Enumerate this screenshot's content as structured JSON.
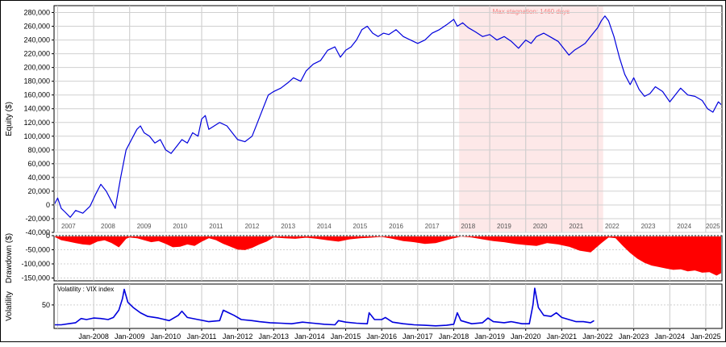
{
  "chart_data": [
    {
      "type": "line",
      "panel": "equity",
      "ylabel": "Equity ($)",
      "ylim": [
        -40000,
        290000
      ],
      "yticks": [
        "280,000",
        "260,000",
        "240,000",
        "220,000",
        "200,000",
        "180,000",
        "160,000",
        "140,000",
        "120,000",
        "100,000",
        "80,000",
        "60,000",
        "40,000",
        "20,000",
        "0",
        "-20,000",
        "-40,000"
      ],
      "ytick_values": [
        280000,
        260000,
        240000,
        220000,
        200000,
        180000,
        160000,
        140000,
        120000,
        100000,
        80000,
        60000,
        40000,
        20000,
        0,
        -20000,
        -40000
      ],
      "year_labels": [
        "2007",
        "2008",
        "2009",
        "2010",
        "2011",
        "2012",
        "2013",
        "2014",
        "2015",
        "2016",
        "2017",
        "2018",
        "2019",
        "2020",
        "2021",
        "2022",
        "2023",
        "2024",
        "2025"
      ],
      "year_positions": [
        2007.3,
        2008.4,
        2009.4,
        2010.4,
        2011.4,
        2012.4,
        2013.4,
        2014.4,
        2015.4,
        2016.4,
        2017.4,
        2018.4,
        2019.4,
        2020.4,
        2021.4,
        2022.4,
        2023.4,
        2024.4,
        2025.2
      ],
      "grid": true,
      "stagnation": {
        "label": "Max stagnation: 1460 days",
        "start": 2018.15,
        "end": 2022.15,
        "color": "#fde8e8"
      },
      "series": [
        {
          "color": "#0000dd",
          "x": [
            2006.9,
            2007.0,
            2007.1,
            2007.2,
            2007.35,
            2007.5,
            2007.7,
            2007.9,
            2008.05,
            2008.2,
            2008.35,
            2008.5,
            2008.6,
            2008.75,
            2008.9,
            2009.05,
            2009.2,
            2009.3,
            2009.4,
            2009.55,
            2009.7,
            2009.85,
            2010.0,
            2010.15,
            2010.3,
            2010.45,
            2010.6,
            2010.75,
            2010.9,
            2011.0,
            2011.1,
            2011.2,
            2011.35,
            2011.5,
            2011.7,
            2011.85,
            2012.0,
            2012.2,
            2012.4,
            2012.55,
            2012.7,
            2012.85,
            2013.0,
            2013.2,
            2013.4,
            2013.55,
            2013.75,
            2013.9,
            2014.1,
            2014.3,
            2014.5,
            2014.7,
            2014.85,
            2015.0,
            2015.15,
            2015.3,
            2015.45,
            2015.6,
            2015.75,
            2015.9,
            2016.05,
            2016.2,
            2016.4,
            2016.6,
            2016.8,
            2017.0,
            2017.2,
            2017.4,
            2017.6,
            2017.8,
            2018.0,
            2018.1,
            2018.25,
            2018.4,
            2018.6,
            2018.8,
            2019.0,
            2019.2,
            2019.4,
            2019.6,
            2019.8,
            2020.0,
            2020.15,
            2020.3,
            2020.5,
            2020.7,
            2020.9,
            2021.05,
            2021.2,
            2021.35,
            2021.5,
            2021.65,
            2021.8,
            2022.0,
            2022.1,
            2022.2,
            2022.3,
            2022.45,
            2022.6,
            2022.75,
            2022.9,
            2023.0,
            2023.15,
            2023.3,
            2023.45,
            2023.6,
            2023.8,
            2024.0,
            2024.15,
            2024.3,
            2024.5,
            2024.7,
            2024.9,
            2025.05,
            2025.2,
            2025.35,
            2025.45
          ],
          "y": [
            0,
            10000,
            -5000,
            -10000,
            -18000,
            -8000,
            -12000,
            -2000,
            15000,
            30000,
            20000,
            5000,
            -5000,
            40000,
            80000,
            95000,
            110000,
            115000,
            105000,
            100000,
            90000,
            95000,
            80000,
            75000,
            85000,
            95000,
            90000,
            105000,
            100000,
            125000,
            130000,
            110000,
            115000,
            120000,
            115000,
            105000,
            95000,
            92000,
            100000,
            120000,
            140000,
            160000,
            165000,
            170000,
            178000,
            185000,
            180000,
            195000,
            205000,
            210000,
            225000,
            230000,
            215000,
            225000,
            230000,
            240000,
            255000,
            260000,
            250000,
            245000,
            250000,
            248000,
            255000,
            245000,
            240000,
            235000,
            240000,
            250000,
            255000,
            262000,
            270000,
            260000,
            265000,
            258000,
            252000,
            245000,
            248000,
            240000,
            245000,
            238000,
            228000,
            240000,
            235000,
            245000,
            250000,
            244000,
            238000,
            228000,
            218000,
            225000,
            230000,
            235000,
            245000,
            258000,
            268000,
            275000,
            268000,
            245000,
            215000,
            190000,
            175000,
            185000,
            168000,
            158000,
            162000,
            172000,
            165000,
            150000,
            160000,
            170000,
            160000,
            158000,
            152000,
            140000,
            135000,
            150000,
            145000
          ]
        }
      ]
    },
    {
      "type": "area",
      "panel": "drawdown",
      "ylabel": "Drawdown ($)",
      "ylim": [
        -160000,
        0
      ],
      "yticks": [
        "0",
        "-50,000",
        "-100,000",
        "-150,000"
      ],
      "ytick_values": [
        0,
        -50000,
        -100000,
        -150000
      ],
      "grid": true,
      "series": [
        {
          "color": "#ff0000",
          "x": [
            2006.9,
            2007.1,
            2007.3,
            2007.5,
            2007.7,
            2007.9,
            2008.1,
            2008.3,
            2008.5,
            2008.7,
            2008.9,
            2009.0,
            2009.2,
            2009.4,
            2009.6,
            2009.8,
            2010.0,
            2010.2,
            2010.4,
            2010.6,
            2010.8,
            2011.0,
            2011.2,
            2011.4,
            2011.6,
            2011.8,
            2012.0,
            2012.2,
            2012.4,
            2012.6,
            2012.8,
            2013.0,
            2013.3,
            2013.6,
            2013.9,
            2014.2,
            2014.5,
            2014.8,
            2015.1,
            2015.4,
            2015.7,
            2016.0,
            2016.3,
            2016.6,
            2016.9,
            2017.2,
            2017.5,
            2017.8,
            2018.0,
            2018.2,
            2018.5,
            2018.8,
            2019.1,
            2019.4,
            2019.7,
            2020.0,
            2020.3,
            2020.6,
            2020.9,
            2021.2,
            2021.5,
            2021.8,
            2022.1,
            2022.3,
            2022.5,
            2022.7,
            2022.9,
            2023.1,
            2023.3,
            2023.5,
            2023.7,
            2023.9,
            2024.1,
            2024.3,
            2024.5,
            2024.7,
            2024.9,
            2025.1,
            2025.3,
            2025.45
          ],
          "y": [
            -2000,
            -15000,
            -20000,
            -25000,
            -30000,
            -32000,
            -20000,
            -15000,
            -25000,
            -40000,
            -10000,
            -5000,
            -8000,
            -15000,
            -22000,
            -18000,
            -28000,
            -40000,
            -38000,
            -30000,
            -35000,
            -20000,
            -8000,
            -15000,
            -28000,
            -38000,
            -48000,
            -50000,
            -42000,
            -30000,
            -20000,
            -5000,
            -8000,
            -10000,
            -6000,
            -10000,
            -15000,
            -20000,
            -12000,
            -8000,
            -6000,
            -3000,
            -10000,
            -18000,
            -22000,
            -28000,
            -25000,
            -15000,
            -8000,
            -2000,
            -5000,
            -12000,
            -18000,
            -22000,
            -28000,
            -32000,
            -35000,
            -25000,
            -30000,
            -38000,
            -52000,
            -58000,
            -25000,
            -5000,
            -8000,
            -35000,
            -60000,
            -80000,
            -95000,
            -105000,
            -110000,
            -115000,
            -120000,
            -118000,
            -125000,
            -122000,
            -130000,
            -128000,
            -140000,
            -130000
          ]
        }
      ]
    },
    {
      "type": "line",
      "panel": "volatility",
      "title": "Volatility : VIX index",
      "ylabel": "Volatility",
      "ylim": [
        5,
        90
      ],
      "yticks": [
        "50"
      ],
      "ytick_values": [
        50
      ],
      "xticks": [
        "Jan-2008",
        "Jan-2009",
        "Jan-2010",
        "Jan-2011",
        "Jan-2012",
        "Jan-2013",
        "Jan-2014",
        "Jan-2015",
        "Jan-2016",
        "Jan-2017",
        "Jan-2018",
        "Jan-2019",
        "Jan-2020",
        "Jan-2021",
        "Jan-2022",
        "Jan-2023",
        "Jan-2024",
        "Jan-2025"
      ],
      "xtick_values": [
        2008,
        2009,
        2010,
        2011,
        2012,
        2013,
        2014,
        2015,
        2016,
        2017,
        2018,
        2019,
        2020,
        2021,
        2022,
        2023,
        2024,
        2025
      ],
      "grid": true,
      "series": [
        {
          "color": "#0000dd",
          "x": [
            2006.9,
            2007.1,
            2007.3,
            2007.5,
            2007.65,
            2007.8,
            2008.0,
            2008.2,
            2008.4,
            2008.55,
            2008.7,
            2008.8,
            2008.85,
            2008.95,
            2009.1,
            2009.3,
            2009.5,
            2009.8,
            2010.1,
            2010.35,
            2010.45,
            2010.6,
            2010.9,
            2011.2,
            2011.5,
            2011.6,
            2011.75,
            2011.9,
            2012.1,
            2012.4,
            2012.6,
            2012.9,
            2013.2,
            2013.5,
            2013.8,
            2014.1,
            2014.4,
            2014.7,
            2014.8,
            2015.0,
            2015.3,
            2015.6,
            2015.65,
            2015.8,
            2016.0,
            2016.1,
            2016.3,
            2016.6,
            2016.9,
            2017.2,
            2017.5,
            2017.8,
            2018.0,
            2018.1,
            2018.2,
            2018.5,
            2018.8,
            2018.95,
            2019.1,
            2019.4,
            2019.6,
            2019.9,
            2020.1,
            2020.2,
            2020.25,
            2020.35,
            2020.5,
            2020.7,
            2020.85,
            2021.0,
            2021.2,
            2021.4,
            2021.6,
            2021.8,
            2021.9
          ],
          "y": [
            12,
            12,
            14,
            16,
            24,
            22,
            25,
            24,
            22,
            26,
            40,
            62,
            80,
            55,
            45,
            35,
            28,
            25,
            20,
            30,
            38,
            26,
            22,
            18,
            20,
            40,
            35,
            30,
            22,
            20,
            18,
            16,
            15,
            14,
            17,
            15,
            13,
            12,
            20,
            17,
            15,
            14,
            35,
            22,
            22,
            26,
            17,
            14,
            12,
            11,
            10,
            11,
            13,
            35,
            20,
            14,
            16,
            25,
            18,
            16,
            18,
            14,
            14,
            50,
            82,
            45,
            30,
            28,
            35,
            26,
            22,
            18,
            18,
            16,
            20
          ]
        }
      ]
    }
  ]
}
